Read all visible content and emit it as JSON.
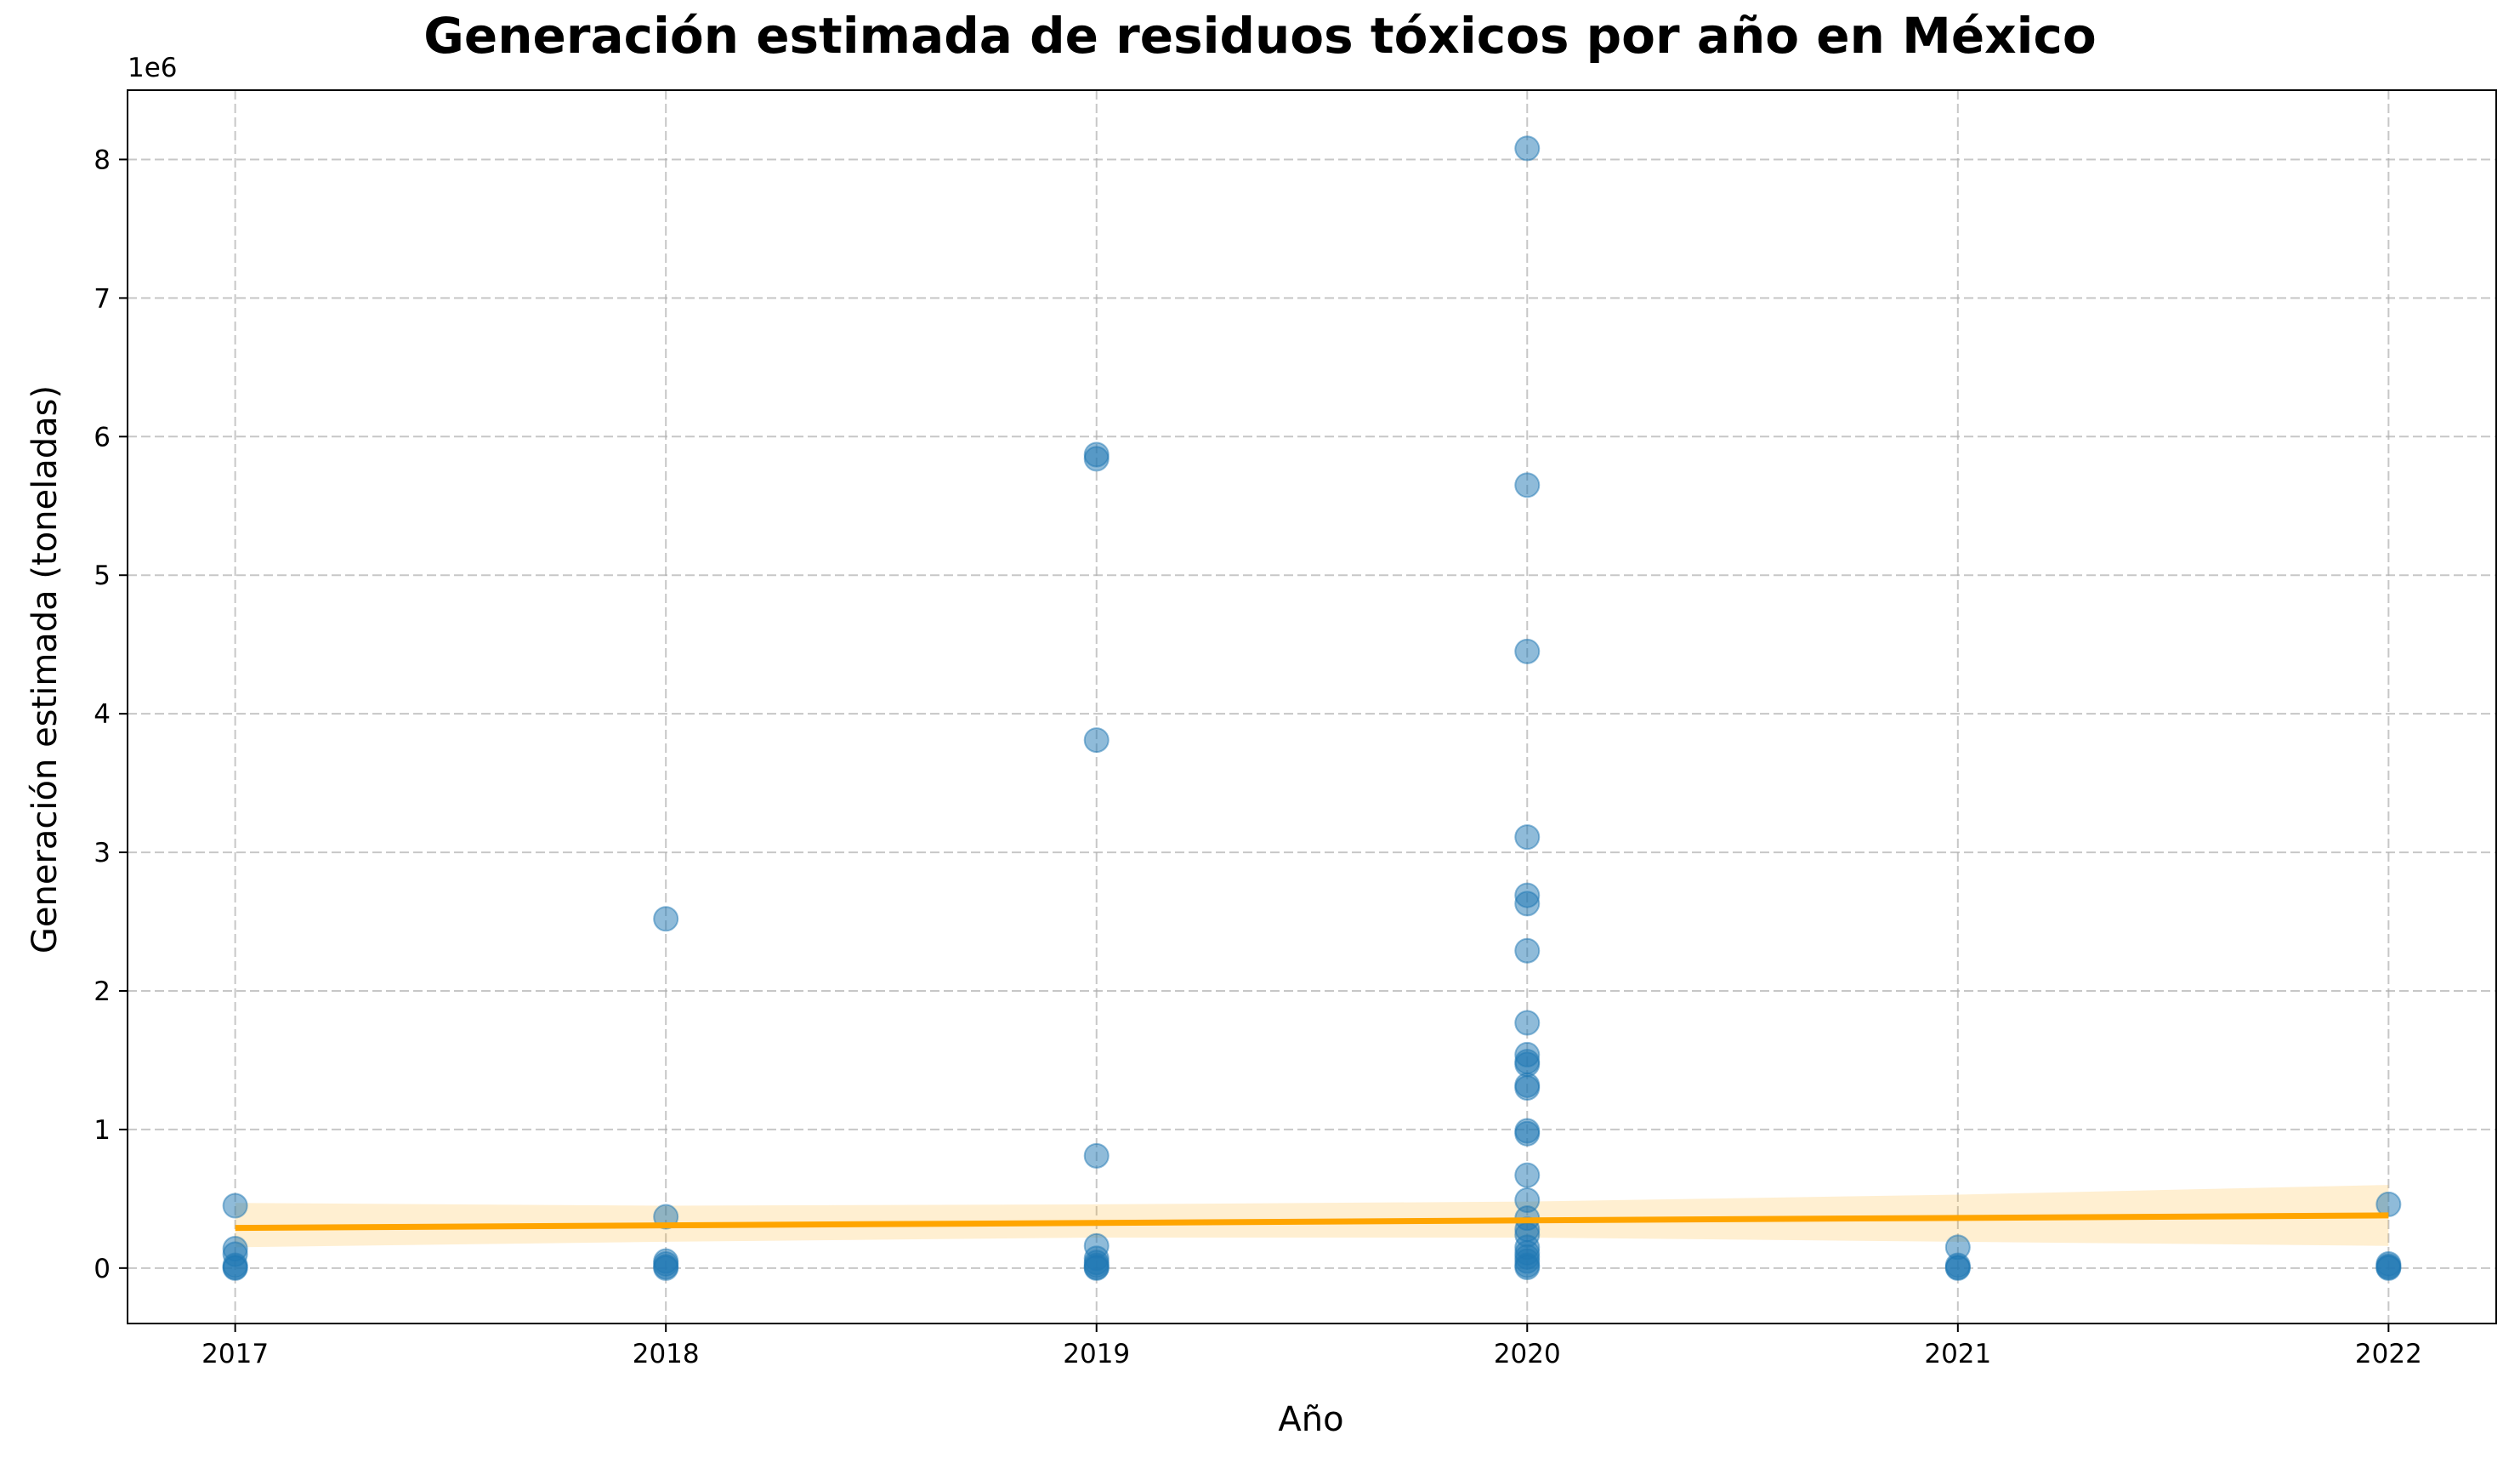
{
  "chart_data": {
    "type": "scatter",
    "title": "Generación estimada de residuos tóxicos por año en México",
    "xlabel": "Año",
    "ylabel": "Generación estimada (toneladas)",
    "y_offset_label": "1e6",
    "xlim": [
      2016.75,
      2022.25
    ],
    "ylim": [
      -400000,
      8500000
    ],
    "x_ticks": [
      2017,
      2018,
      2019,
      2020,
      2021,
      2022
    ],
    "y_ticks": [
      0,
      1000000,
      2000000,
      3000000,
      4000000,
      5000000,
      6000000,
      7000000,
      8000000
    ],
    "y_tick_labels": [
      "0",
      "1",
      "2",
      "3",
      "4",
      "5",
      "6",
      "7",
      "8"
    ],
    "grid": true,
    "point_color": "#1f77b4",
    "trend_color": "#ffa500",
    "points": [
      {
        "x": 2017,
        "y": 450000
      },
      {
        "x": 2017,
        "y": 140000
      },
      {
        "x": 2017,
        "y": 100000
      },
      {
        "x": 2017,
        "y": 20000
      },
      {
        "x": 2017,
        "y": 5000
      },
      {
        "x": 2017,
        "y": 0
      },
      {
        "x": 2018,
        "y": 2520000
      },
      {
        "x": 2018,
        "y": 370000
      },
      {
        "x": 2018,
        "y": 50000
      },
      {
        "x": 2018,
        "y": 30000
      },
      {
        "x": 2018,
        "y": 10000
      },
      {
        "x": 2018,
        "y": 0
      },
      {
        "x": 2019,
        "y": 5870000
      },
      {
        "x": 2019,
        "y": 5840000
      },
      {
        "x": 2019,
        "y": 3810000
      },
      {
        "x": 2019,
        "y": 810000
      },
      {
        "x": 2019,
        "y": 160000
      },
      {
        "x": 2019,
        "y": 70000
      },
      {
        "x": 2019,
        "y": 40000
      },
      {
        "x": 2019,
        "y": 20000
      },
      {
        "x": 2019,
        "y": 5000
      },
      {
        "x": 2019,
        "y": 0
      },
      {
        "x": 2020,
        "y": 8080000
      },
      {
        "x": 2020,
        "y": 5650000
      },
      {
        "x": 2020,
        "y": 4450000
      },
      {
        "x": 2020,
        "y": 3110000
      },
      {
        "x": 2020,
        "y": 2690000
      },
      {
        "x": 2020,
        "y": 2630000
      },
      {
        "x": 2020,
        "y": 2290000
      },
      {
        "x": 2020,
        "y": 1770000
      },
      {
        "x": 2020,
        "y": 1540000
      },
      {
        "x": 2020,
        "y": 1490000
      },
      {
        "x": 2020,
        "y": 1470000
      },
      {
        "x": 2020,
        "y": 1320000
      },
      {
        "x": 2020,
        "y": 1300000
      },
      {
        "x": 2020,
        "y": 990000
      },
      {
        "x": 2020,
        "y": 970000
      },
      {
        "x": 2020,
        "y": 670000
      },
      {
        "x": 2020,
        "y": 490000
      },
      {
        "x": 2020,
        "y": 360000
      },
      {
        "x": 2020,
        "y": 280000
      },
      {
        "x": 2020,
        "y": 240000
      },
      {
        "x": 2020,
        "y": 150000
      },
      {
        "x": 2020,
        "y": 110000
      },
      {
        "x": 2020,
        "y": 80000
      },
      {
        "x": 2020,
        "y": 50000
      },
      {
        "x": 2020,
        "y": 20000
      },
      {
        "x": 2020,
        "y": 5000
      },
      {
        "x": 2021,
        "y": 150000
      },
      {
        "x": 2021,
        "y": 20000
      },
      {
        "x": 2021,
        "y": 5000
      },
      {
        "x": 2021,
        "y": 0
      },
      {
        "x": 2022,
        "y": 460000
      },
      {
        "x": 2022,
        "y": 30000
      },
      {
        "x": 2022,
        "y": 15000
      },
      {
        "x": 2022,
        "y": 5000
      },
      {
        "x": 2022,
        "y": 0
      }
    ],
    "trend_line": {
      "x": [
        2017,
        2022
      ],
      "y": [
        290000,
        380000
      ]
    },
    "confidence_band": {
      "x": [
        2017,
        2018,
        2019,
        2020,
        2021,
        2022
      ],
      "lower": [
        150000,
        190000,
        220000,
        220000,
        190000,
        160000
      ],
      "upper": [
        470000,
        450000,
        460000,
        480000,
        530000,
        600000
      ]
    }
  }
}
